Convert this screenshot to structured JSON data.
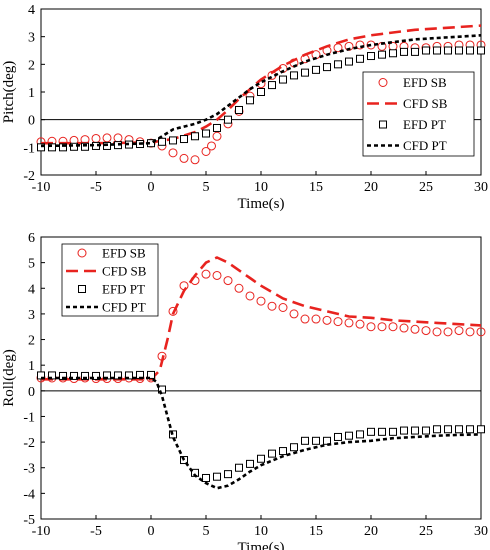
{
  "chart_data": [
    {
      "type": "line",
      "xlabel": "Time(s)",
      "ylabel": "Pitch(deg)",
      "xlim": [
        -10,
        30
      ],
      "ylim": [
        -2,
        4
      ],
      "xticks": [
        "-10",
        "-5",
        "0",
        "5",
        "10",
        "15",
        "20",
        "25",
        "30"
      ],
      "yticks": [
        "-2",
        "-1",
        "0",
        "1",
        "2",
        "3",
        "4"
      ],
      "legend_position": "right",
      "series": [
        {
          "name": "EFD SB",
          "style": "circle-markers",
          "color": "#e8231f",
          "x": [
            -10,
            -9,
            -8,
            -7,
            -6,
            -5,
            -4,
            -3,
            -2,
            -1,
            0,
            1,
            2,
            3,
            4,
            5,
            5.5,
            6,
            7,
            8,
            9,
            10,
            11,
            12,
            13,
            14,
            15,
            16,
            17,
            18,
            19,
            20,
            21,
            22,
            23,
            24,
            25,
            26,
            27,
            28,
            29,
            30
          ],
          "y": [
            -0.8,
            -0.78,
            -0.78,
            -0.75,
            -0.72,
            -0.68,
            -0.66,
            -0.66,
            -0.72,
            -0.8,
            -0.85,
            -0.95,
            -1.2,
            -1.4,
            -1.45,
            -1.15,
            -0.95,
            -0.6,
            -0.15,
            0.3,
            0.85,
            1.3,
            1.6,
            1.85,
            2.05,
            2.2,
            2.35,
            2.5,
            2.6,
            2.65,
            2.7,
            2.7,
            2.65,
            2.65,
            2.65,
            2.6,
            2.6,
            2.65,
            2.65,
            2.7,
            2.7,
            2.7
          ]
        },
        {
          "name": "CFD SB",
          "style": "dashed",
          "color": "#e8231f",
          "x": [
            -10,
            -5,
            0,
            2,
            4,
            5,
            6,
            7,
            8,
            9,
            10,
            12,
            14,
            16,
            18,
            20,
            22,
            24,
            26,
            28,
            30
          ],
          "y": [
            -0.85,
            -0.85,
            -0.82,
            -0.7,
            -0.45,
            -0.25,
            0.0,
            0.35,
            0.75,
            1.1,
            1.45,
            1.95,
            2.35,
            2.65,
            2.9,
            3.05,
            3.15,
            3.25,
            3.3,
            3.35,
            3.4
          ]
        },
        {
          "name": "EFD PT",
          "style": "square-markers",
          "color": "#000000",
          "x": [
            -10,
            -9,
            -8,
            -7,
            -6,
            -5,
            -4,
            -3,
            -2,
            -1,
            0,
            1,
            2,
            3,
            4,
            5,
            6,
            7,
            8,
            9,
            10,
            11,
            12,
            13,
            14,
            15,
            16,
            17,
            18,
            19,
            20,
            21,
            22,
            23,
            24,
            25,
            26,
            27,
            28,
            29,
            30
          ],
          "y": [
            -1.0,
            -1.0,
            -1.0,
            -0.98,
            -0.98,
            -0.95,
            -0.95,
            -0.92,
            -0.9,
            -0.88,
            -0.85,
            -0.8,
            -0.75,
            -0.7,
            -0.6,
            -0.5,
            -0.3,
            0.0,
            0.35,
            0.7,
            1.0,
            1.25,
            1.45,
            1.6,
            1.7,
            1.8,
            1.9,
            2.0,
            2.1,
            2.2,
            2.3,
            2.35,
            2.4,
            2.45,
            2.45,
            2.5,
            2.5,
            2.5,
            2.5,
            2.5,
            2.5
          ]
        },
        {
          "name": "CFD PT",
          "style": "dotted",
          "color": "#000000",
          "x": [
            -10,
            -5,
            0,
            1,
            2,
            3,
            4,
            5,
            6,
            7,
            8,
            9,
            10,
            12,
            14,
            16,
            18,
            20,
            22,
            24,
            26,
            28,
            30
          ],
          "y": [
            -0.95,
            -0.92,
            -0.85,
            -0.6,
            -0.35,
            -0.25,
            -0.15,
            0.0,
            0.2,
            0.5,
            0.8,
            1.1,
            1.35,
            1.75,
            2.1,
            2.35,
            2.55,
            2.7,
            2.8,
            2.9,
            2.95,
            3.0,
            3.05
          ]
        }
      ]
    },
    {
      "type": "line",
      "xlabel": "Time(s)",
      "ylabel": "Roll(deg)",
      "xlim": [
        -10,
        30
      ],
      "ylim": [
        -5,
        6
      ],
      "xticks": [
        "-10",
        "-5",
        "0",
        "5",
        "10",
        "15",
        "20",
        "25",
        "30"
      ],
      "yticks": [
        "-5",
        "-4",
        "-3",
        "-2",
        "-1",
        "0",
        "1",
        "2",
        "3",
        "4",
        "5",
        "6"
      ],
      "legend_position": "top-left",
      "series": [
        {
          "name": "EFD SB",
          "style": "circle-markers",
          "color": "#e8231f",
          "x": [
            -10,
            -9,
            -8,
            -7,
            -6,
            -5,
            -4,
            -3,
            -2,
            -1,
            0,
            1,
            2,
            3,
            4,
            5,
            6,
            7,
            8,
            9,
            10,
            11,
            12,
            13,
            14,
            15,
            16,
            17,
            18,
            19,
            20,
            21,
            22,
            23,
            24,
            25,
            26,
            27,
            28,
            29,
            30
          ],
          "y": [
            0.5,
            0.5,
            0.5,
            0.48,
            0.5,
            0.48,
            0.48,
            0.48,
            0.5,
            0.48,
            0.5,
            1.35,
            3.1,
            4.1,
            4.3,
            4.55,
            4.5,
            4.3,
            4.0,
            3.7,
            3.5,
            3.3,
            3.25,
            3.0,
            2.8,
            2.8,
            2.75,
            2.7,
            2.65,
            2.6,
            2.5,
            2.5,
            2.5,
            2.45,
            2.4,
            2.35,
            2.3,
            2.3,
            2.35,
            2.3,
            2.3
          ]
        },
        {
          "name": "CFD SB",
          "style": "dashed",
          "color": "#e8231f",
          "x": [
            -10,
            -5,
            0,
            0.8,
            1.5,
            2,
            3,
            4,
            5,
            6,
            7,
            8,
            9,
            10,
            12,
            14,
            16,
            18,
            20,
            22,
            24,
            26,
            28,
            30
          ],
          "y": [
            0.45,
            0.45,
            0.45,
            0.8,
            2.0,
            3.0,
            3.9,
            4.5,
            5.0,
            5.2,
            5.0,
            4.7,
            4.4,
            4.1,
            3.6,
            3.3,
            3.1,
            2.9,
            2.85,
            2.75,
            2.7,
            2.65,
            2.6,
            2.55
          ]
        },
        {
          "name": "EFD PT",
          "style": "square-markers",
          "color": "#000000",
          "x": [
            -10,
            -9,
            -8,
            -7,
            -6,
            -5,
            -4,
            -3,
            -2,
            -1,
            0,
            1,
            2,
            3,
            4,
            5,
            6,
            7,
            8,
            9,
            10,
            11,
            12,
            13,
            14,
            15,
            16,
            17,
            18,
            19,
            20,
            21,
            22,
            23,
            24,
            25,
            26,
            27,
            28,
            29,
            30
          ],
          "y": [
            0.6,
            0.6,
            0.58,
            0.58,
            0.58,
            0.58,
            0.6,
            0.6,
            0.6,
            0.62,
            0.62,
            0.05,
            -1.7,
            -2.7,
            -3.2,
            -3.4,
            -3.35,
            -3.25,
            -3.0,
            -2.85,
            -2.65,
            -2.45,
            -2.35,
            -2.2,
            -1.95,
            -1.95,
            -1.95,
            -1.8,
            -1.75,
            -1.7,
            -1.6,
            -1.6,
            -1.6,
            -1.55,
            -1.55,
            -1.55,
            -1.5,
            -1.5,
            -1.5,
            -1.5,
            -1.5
          ]
        },
        {
          "name": "CFD PT",
          "style": "dotted",
          "color": "#000000",
          "x": [
            -10,
            -5,
            0,
            0.5,
            1,
            1.5,
            2,
            3,
            4,
            5,
            6,
            7,
            8,
            9,
            10,
            12,
            14,
            16,
            18,
            20,
            22,
            24,
            26,
            28,
            30
          ],
          "y": [
            0.5,
            0.5,
            0.5,
            0.35,
            -0.2,
            -1.0,
            -1.8,
            -2.7,
            -3.3,
            -3.6,
            -3.8,
            -3.7,
            -3.45,
            -3.15,
            -2.9,
            -2.55,
            -2.3,
            -2.1,
            -2.0,
            -1.95,
            -1.85,
            -1.8,
            -1.75,
            -1.72,
            -1.7
          ]
        }
      ]
    }
  ]
}
